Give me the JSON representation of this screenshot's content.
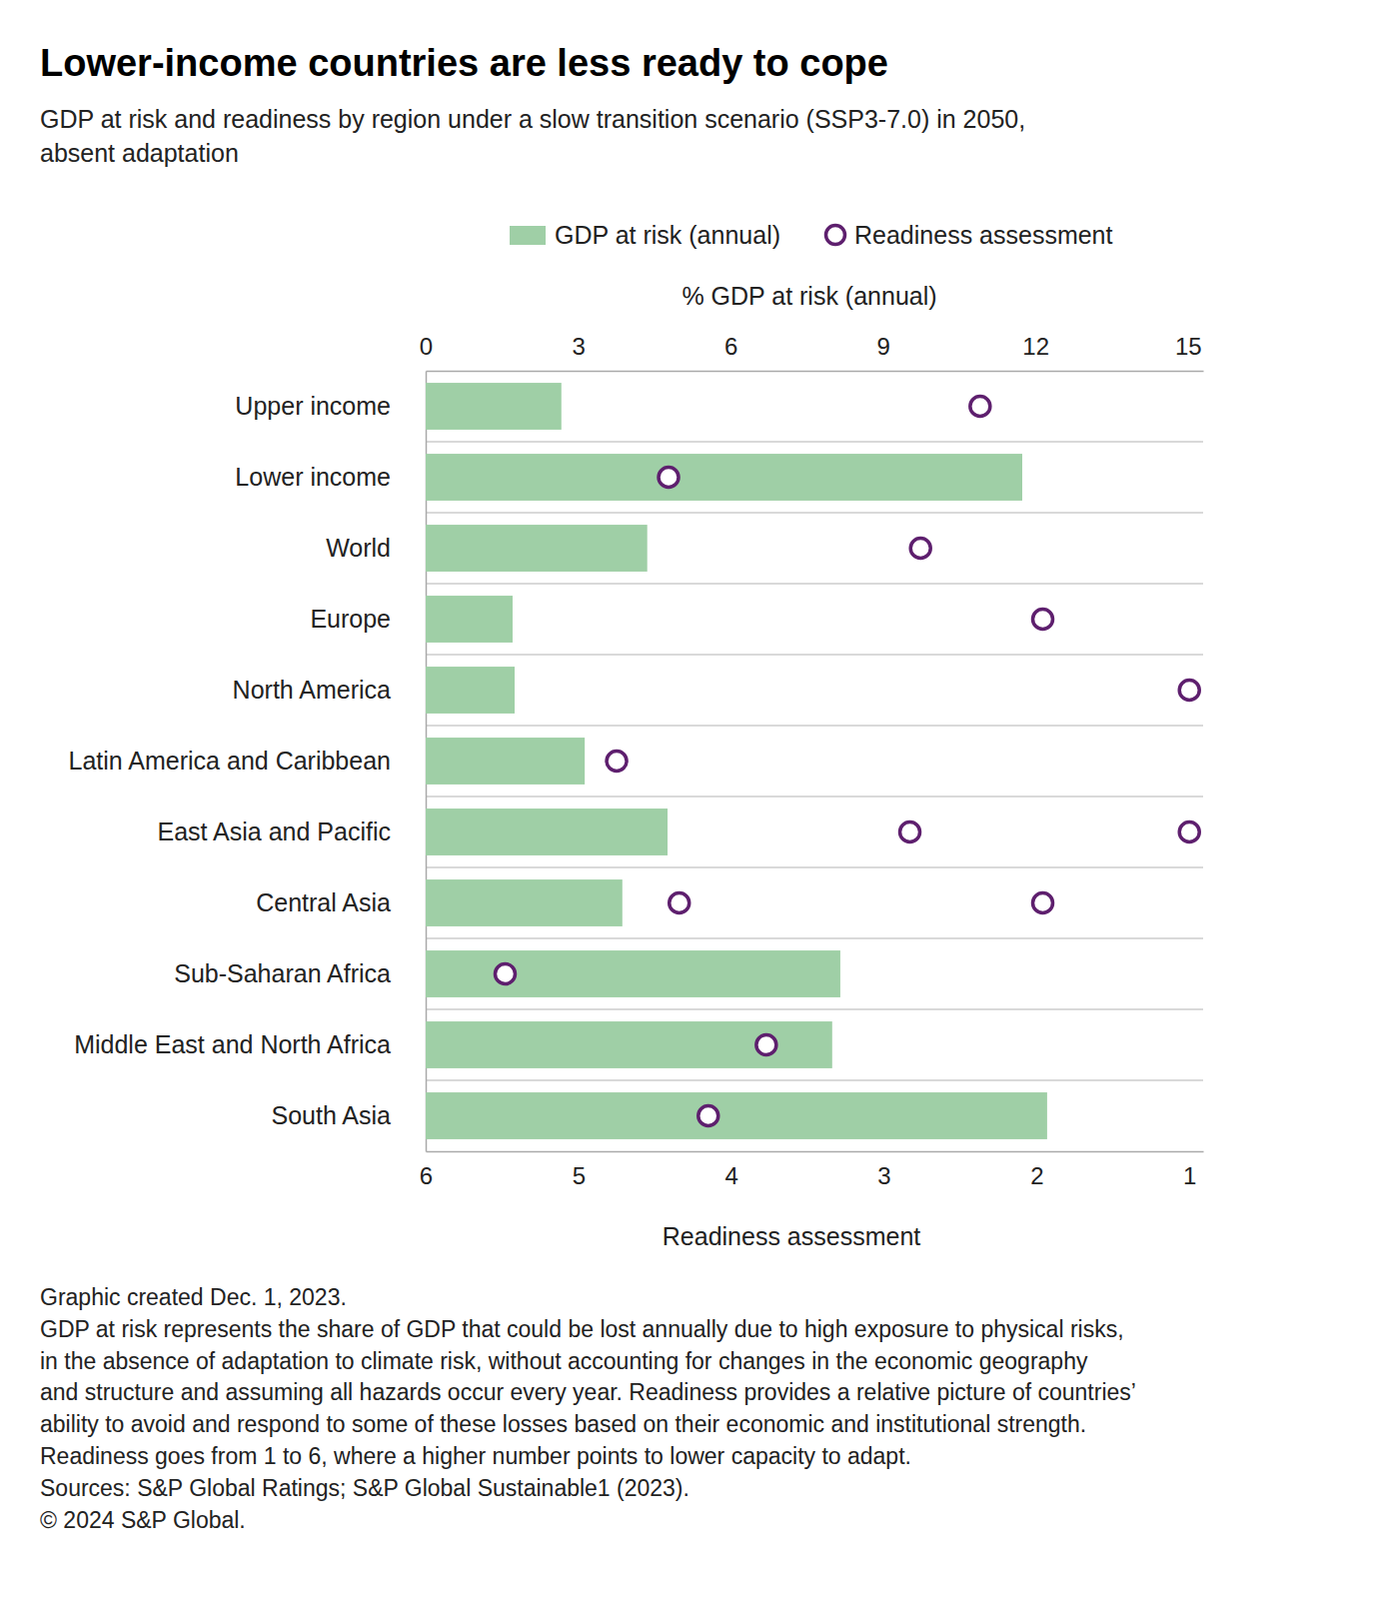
{
  "chart_data": {
    "type": "bar",
    "orientation": "horizontal",
    "title": "Lower-income countries are less ready to cope",
    "subtitle": [
      "GDP at risk and readiness by region under a slow transition scenario (SSP3-7.0) in 2050,",
      "absent adaptation"
    ],
    "x_label": "% GDP at risk (annual)",
    "x2_label": "Readiness assessment",
    "categories": [
      "Upper income",
      "Lower income",
      "World",
      "Europe",
      "North America",
      "Latin America and Caribbean",
      "East Asia and Pacific",
      "Central Asia",
      "Sub-Saharan Africa",
      "Middle East and North Africa",
      "South Asia"
    ],
    "series": [
      {
        "name": "GDP at risk (annual)",
        "type": "bar",
        "color": "#9fcfa6",
        "values": [
          2.67,
          11.74,
          4.36,
          1.71,
          1.75,
          3.13,
          4.76,
          3.87,
          8.16,
          8.0,
          12.23
        ]
      },
      {
        "name": "Readiness assessment",
        "type": "scatter",
        "marker": "circle",
        "color": "#5e1f6e",
        "axis": "x2",
        "values": [
          [
            2.37
          ],
          [
            4.41
          ],
          [
            2.76
          ],
          [
            1.96
          ],
          [
            1.0
          ],
          [
            4.75
          ],
          [
            2.83,
            1.0
          ],
          [
            4.34,
            1.96
          ],
          [
            5.48
          ],
          [
            3.77
          ],
          [
            4.15
          ]
        ]
      }
    ],
    "xlim": [
      0,
      15.3
    ],
    "xticks": [
      0,
      3,
      6,
      9,
      12,
      15
    ],
    "x2lim": [
      6,
      0.91
    ],
    "x2ticks": [
      6,
      5,
      4,
      3,
      2,
      1
    ],
    "grid": true,
    "legend": "top",
    "notes": [
      "Graphic created Dec. 1, 2023.",
      "GDP at risk represents the share of GDP that could be lost annually due to high exposure to physical risks,",
      "in the absence of adaptation to climate risk, without accounting for changes in the economic geography",
      "and structure and assuming all hazards occur every year. Readiness provides a relative picture of countries’",
      "ability to avoid and respond to some of these losses based on their economic and institutional strength.",
      "Readiness goes from 1 to 6, where a higher number points to lower capacity to adapt.",
      "Sources: S&P Global Ratings; S&P Global Sustainable1 (2023).",
      "© 2024 S&P Global."
    ]
  }
}
